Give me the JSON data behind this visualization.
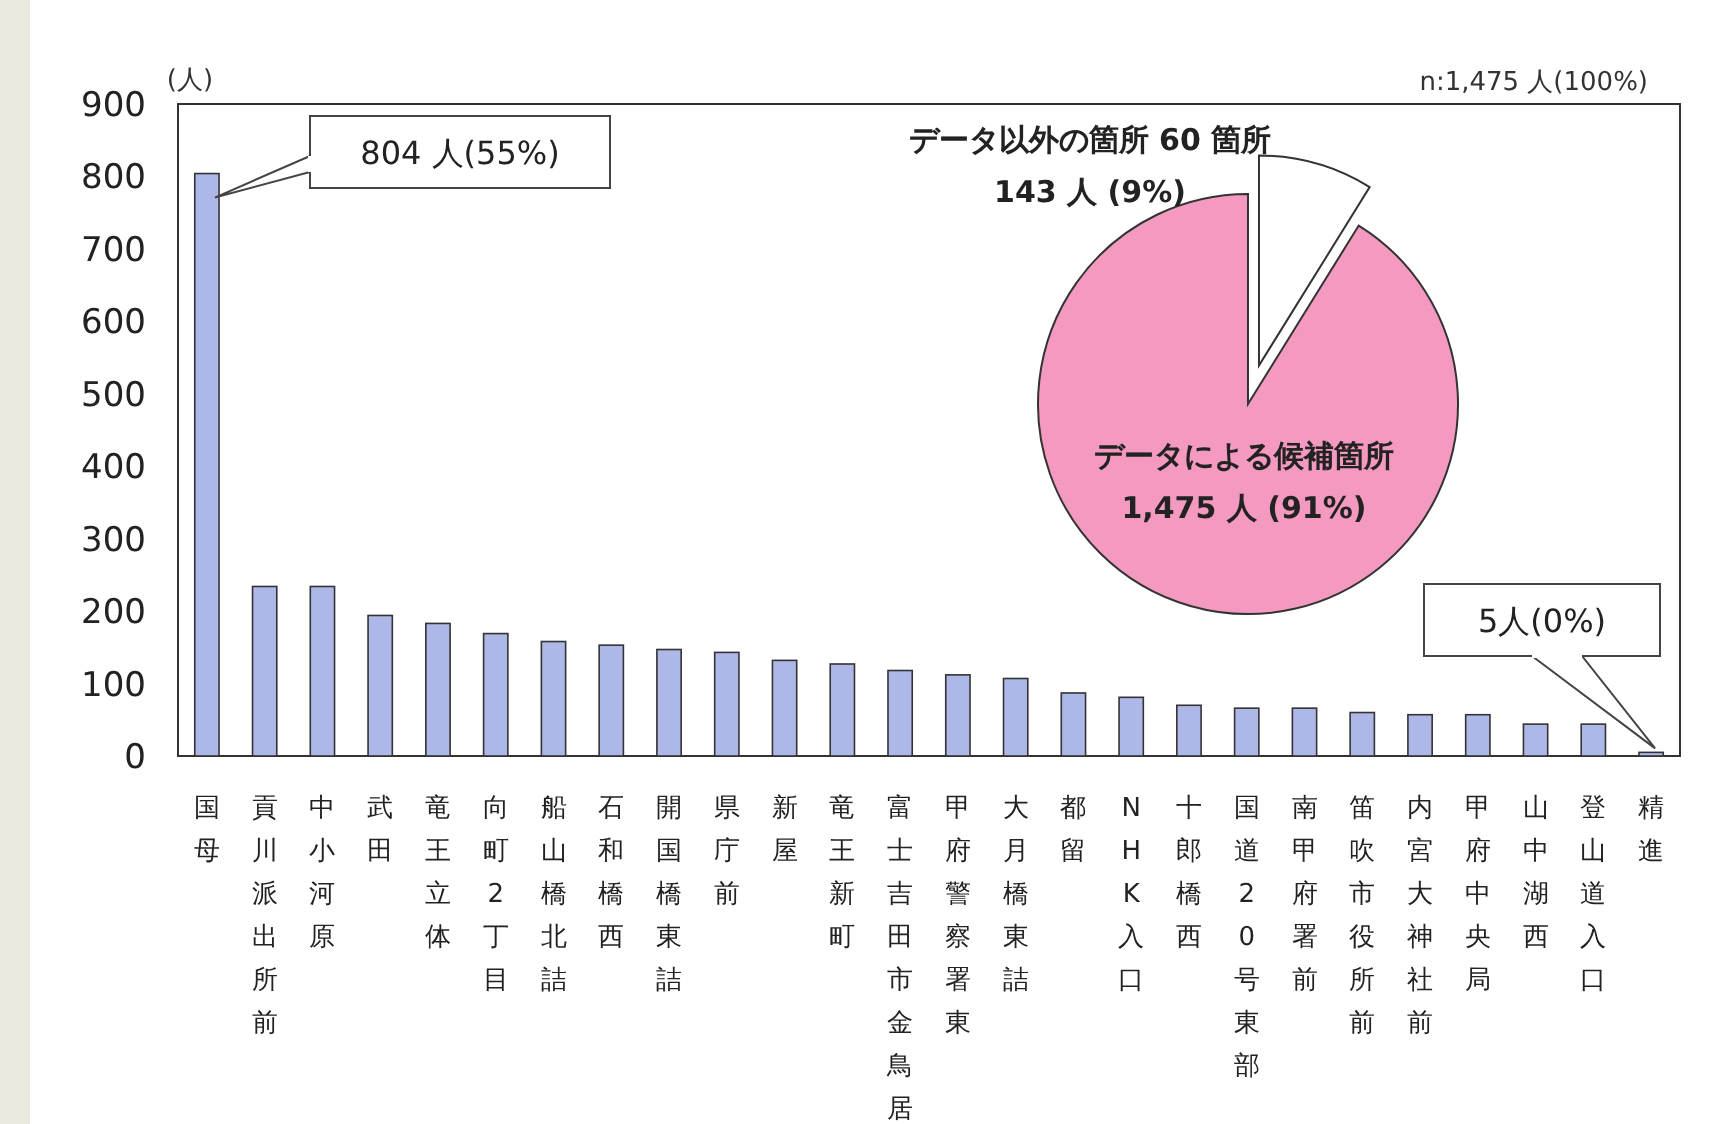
{
  "chart_data": [
    {
      "type": "bar",
      "ylabel": "(人)",
      "categories": [
        "国母",
        "貢川派出所前",
        "中小河原",
        "武田",
        "竜王立体",
        "向町2丁目",
        "船山橋北詰",
        "石和橋西",
        "開国橋東詰",
        "県庁前",
        "新屋",
        "竜王新町",
        "富士吉田市金鳥居",
        "甲府警察署東",
        "大月橋東詰",
        "都留",
        "NHK入口",
        "十郎橋西",
        "国道20号東部",
        "南甲府署前",
        "笛吹市役所前",
        "内宮大神社前",
        "甲府中央局",
        "山中湖西",
        "登山道入口",
        "精進"
      ],
      "values": [
        804,
        234,
        234,
        194,
        183,
        169,
        158,
        153,
        147,
        143,
        132,
        127,
        118,
        112,
        107,
        87,
        81,
        70,
        66,
        66,
        60,
        57,
        57,
        44,
        44,
        5
      ],
      "color": "#aeb8e8",
      "ylim": [
        0,
        900
      ],
      "yticks": [
        0,
        100,
        200,
        300,
        400,
        500,
        600,
        700,
        800,
        900
      ],
      "grid": false,
      "annotations": [
        "804 人(55%)",
        "5人(0%)"
      ]
    },
    {
      "type": "pie",
      "categories": [
        "データ以外の箇所 60 箇所",
        "データによる候補箇所"
      ],
      "values": [
        143,
        1475
      ],
      "colors": [
        "#ffffff",
        "#f49ac1"
      ],
      "value_labels": [
        "143 人 (9%)",
        "1,475 人 (91%)"
      ],
      "annotations": [
        "n:1,475 人(100%)"
      ]
    }
  ]
}
